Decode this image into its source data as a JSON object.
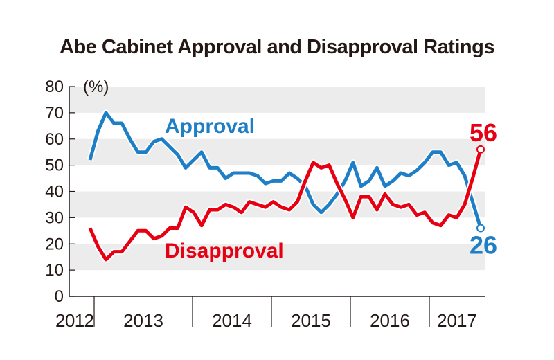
{
  "title": "Abe Cabinet Approval and Disapproval Ratings",
  "chart_data": {
    "type": "line",
    "title": "Abe Cabinet Approval and Disapproval Ratings",
    "ylabel": "(%)",
    "ylim": [
      0,
      80
    ],
    "yticks": [
      "0",
      "10",
      "20",
      "30",
      "40",
      "50",
      "60",
      "70",
      "80"
    ],
    "xlabels": [
      "2012",
      "2013",
      "2014",
      "2015",
      "2016",
      "2017"
    ],
    "grid": "alternating horizontal bands",
    "series": [
      {
        "name": "Approval",
        "color": "#1f7fc6",
        "values": [
          52,
          63,
          70,
          66,
          66,
          60,
          55,
          55,
          59,
          60,
          57,
          54,
          49,
          52,
          55,
          49,
          49,
          45,
          47,
          47,
          47,
          46,
          43,
          44,
          44,
          47,
          45,
          42,
          35,
          32,
          35,
          39,
          44,
          51,
          42,
          44,
          49,
          42,
          44,
          47,
          46,
          48,
          51,
          55,
          55,
          50,
          51,
          46,
          36,
          26
        ],
        "end_label": "26"
      },
      {
        "name": "Disapproval",
        "color": "#e60012",
        "values": [
          26,
          19,
          14,
          17,
          17,
          21,
          25,
          25,
          22,
          23,
          26,
          26,
          34,
          32,
          27,
          33,
          33,
          35,
          34,
          32,
          36,
          35,
          34,
          36,
          34,
          33,
          36,
          44,
          51,
          49,
          50,
          43,
          37,
          30,
          38,
          38,
          33,
          39,
          35,
          34,
          35,
          31,
          32,
          28,
          27,
          31,
          30,
          35,
          45,
          56
        ],
        "end_label": "56"
      }
    ]
  }
}
